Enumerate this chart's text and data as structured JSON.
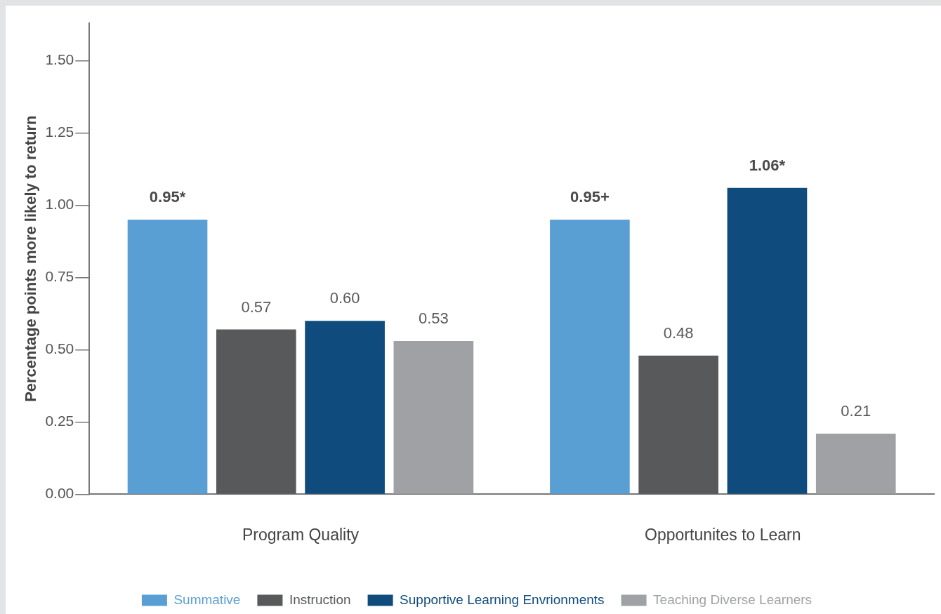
{
  "chart_data": {
    "type": "bar",
    "ylabel": "Percentage points more likely to return",
    "categories": [
      "Program Quality",
      "Opportunites to Learn"
    ],
    "series": [
      {
        "name": "Summative",
        "color": "#5a9fd4",
        "values": [
          0.95,
          0.95
        ],
        "value_labels": [
          "0.95*",
          "0.95+"
        ]
      },
      {
        "name": "Instruction",
        "color": "#58595b",
        "values": [
          0.57,
          0.48
        ],
        "value_labels": [
          "0.57",
          "0.48"
        ]
      },
      {
        "name": "Supportive Learning Envrionments",
        "color": "#0f4c7d",
        "values": [
          0.6,
          1.06
        ],
        "value_labels": [
          "0.60",
          "1.06*"
        ]
      },
      {
        "name": "Teaching Diverse Learners",
        "color": "#a0a1a4",
        "values": [
          0.53,
          0.21
        ],
        "value_labels": [
          "0.53",
          "0.21"
        ]
      }
    ],
    "ylim": [
      0,
      1.63
    ],
    "yticks": [
      {
        "value": 0,
        "label": "0.00"
      },
      {
        "value": 0.25,
        "label": "0.25"
      },
      {
        "value": 0.5,
        "label": "0.50"
      },
      {
        "value": 0.75,
        "label": "0.75"
      },
      {
        "value": 1,
        "label": "1.00"
      },
      {
        "value": 1.25,
        "label": "1.25"
      },
      {
        "value": 1.5,
        "label": "1.50"
      }
    ],
    "grid": false,
    "legend": "bottom"
  }
}
